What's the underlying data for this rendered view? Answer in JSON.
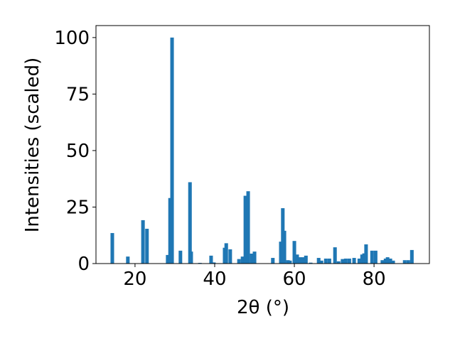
{
  "chart_data": {
    "type": "bar",
    "color": "#1f77b4",
    "x_label": "2θ (°)",
    "y_label": "Intensities (scaled)",
    "x": [
      14.3,
      18.2,
      22.0,
      23.0,
      28.2,
      28.8,
      29.3,
      31.4,
      33.8,
      34.1,
      36.3,
      39.1,
      39.8,
      42.5,
      42.9,
      43.9,
      46.1,
      47.0,
      47.7,
      48.4,
      49.3,
      50.0,
      54.6,
      56.6,
      57.1,
      57.5,
      58.4,
      58.9,
      60.0,
      60.7,
      61.4,
      62.1,
      62.9,
      64.1,
      66.1,
      66.8,
      67.9,
      68.8,
      70.2,
      71.1,
      72.1,
      72.9,
      73.8,
      75.0,
      76.3,
      77.0,
      77.5,
      78.0,
      79.5,
      80.4,
      82.1,
      82.9,
      83.4,
      84.1,
      84.8,
      87.7,
      88.6,
      89.5
    ],
    "values": [
      13.5,
      3.1,
      19.2,
      15.4,
      3.8,
      29,
      100,
      5.7,
      36,
      5.3,
      0.3,
      3.5,
      0.5,
      7,
      9,
      6.3,
      2,
      3.1,
      30,
      32,
      4.4,
      5.3,
      2.5,
      9.7,
      24.5,
      14.5,
      1.5,
      1.3,
      10,
      4,
      2.8,
      2.8,
      3.5,
      0.4,
      2.5,
      1.3,
      2.2,
      2.2,
      7.2,
      1,
      2,
      2.2,
      2.2,
      2.5,
      2.2,
      4,
      4.5,
      8.5,
      5.7,
      5.7,
      1.5,
      2.2,
      2.8,
      2.2,
      1.3,
      1.5,
      1.5,
      6
    ],
    "xlim": [
      10.2,
      93.9
    ],
    "ylim": [
      0,
      105.3
    ],
    "xticks": [
      20,
      40,
      60,
      80
    ],
    "yticks": [
      0,
      25,
      50,
      75,
      100
    ]
  }
}
